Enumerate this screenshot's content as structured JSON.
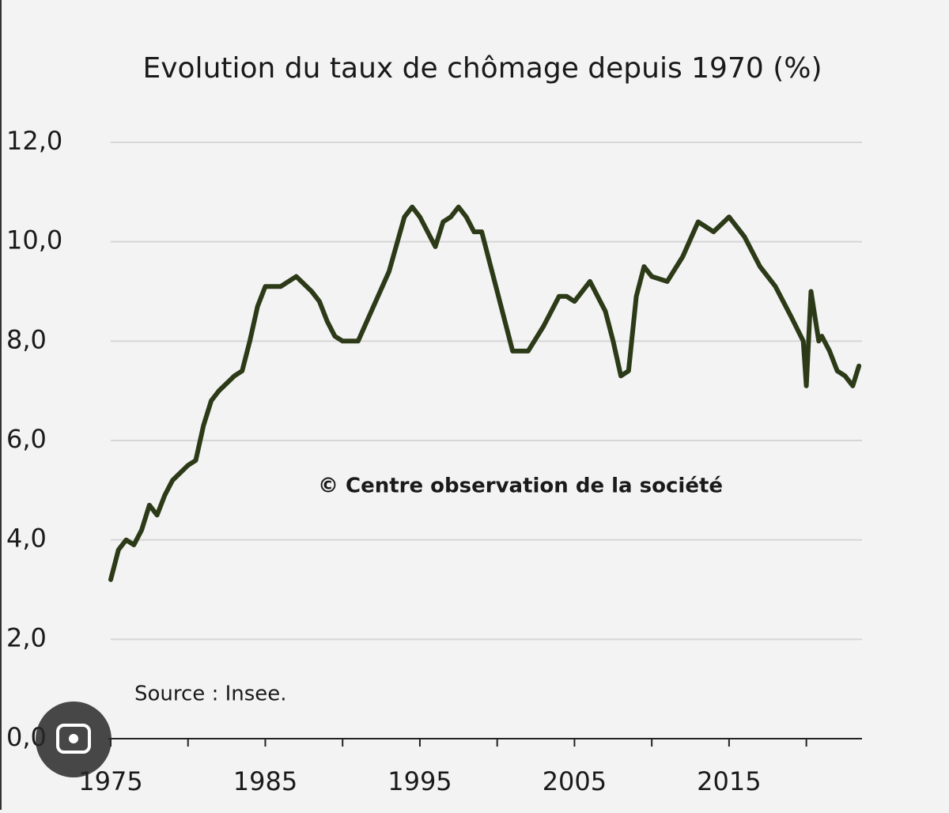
{
  "chart_data": {
    "type": "line",
    "title": "Evolution du taux de chômage depuis 1970  (%)",
    "annotations": [
      "© Centre observation de la société",
      "Source : Insee."
    ],
    "x": [
      1975,
      1975.5,
      1976,
      1976.5,
      1977,
      1977.5,
      1978,
      1978.5,
      1979,
      1980,
      1980.5,
      1981,
      1981.5,
      1982,
      1983,
      1983.5,
      1984,
      1984.5,
      1985,
      1986,
      1987,
      1988,
      1988.5,
      1989,
      1989.5,
      1990,
      1991,
      1992,
      1993,
      1994,
      1994.5,
      1995,
      1996,
      1996.5,
      1997,
      1997.5,
      1998,
      1998.5,
      1999,
      2000,
      2001,
      2002,
      2003,
      2004,
      2004.5,
      2005,
      2006,
      2007,
      2007.5,
      2008,
      2008.5,
      2009,
      2009.5,
      2010,
      2011,
      2012,
      2013,
      2014,
      2015,
      2016,
      2017,
      2018,
      2019,
      2019.8,
      2020,
      2020.3,
      2020.8,
      2021,
      2021.5,
      2022,
      2022.5,
      2023,
      2023.4
    ],
    "series": [
      {
        "name": "Taux de chômage",
        "color": "#2c3a18",
        "values": [
          3.2,
          3.8,
          4.0,
          3.9,
          4.2,
          4.7,
          4.5,
          4.9,
          5.2,
          5.5,
          5.6,
          6.3,
          6.8,
          7.0,
          7.3,
          7.4,
          8.0,
          8.7,
          9.1,
          9.1,
          9.3,
          9.0,
          8.8,
          8.4,
          8.1,
          8.0,
          8.0,
          8.7,
          9.4,
          10.5,
          10.7,
          10.5,
          9.9,
          10.4,
          10.5,
          10.7,
          10.5,
          10.2,
          10.2,
          9.0,
          7.8,
          7.8,
          8.3,
          8.9,
          8.9,
          8.8,
          9.2,
          8.6,
          8.0,
          7.3,
          7.4,
          8.9,
          9.5,
          9.3,
          9.2,
          9.7,
          10.4,
          10.2,
          10.5,
          10.1,
          9.5,
          9.1,
          8.5,
          8.0,
          7.1,
          9.0,
          8.0,
          8.1,
          7.8,
          7.4,
          7.3,
          7.1,
          7.5
        ]
      }
    ],
    "xlim": [
      1975,
      2023.6
    ],
    "xticks": [
      1975,
      1985,
      1995,
      2005,
      2015
    ],
    "xticks_minor": [
      1980,
      1990,
      2000,
      2010,
      2020
    ],
    "ylim": [
      0,
      12
    ],
    "yticks": [
      {
        "value": 0,
        "label": "0,0"
      },
      {
        "value": 2,
        "label": "2,0"
      },
      {
        "value": 4,
        "label": "4,0"
      },
      {
        "value": 6,
        "label": "6,0"
      },
      {
        "value": 8,
        "label": "8,0"
      },
      {
        "value": 10,
        "label": "10,0"
      },
      {
        "value": 12,
        "label": "12,0"
      }
    ],
    "grid": true
  }
}
